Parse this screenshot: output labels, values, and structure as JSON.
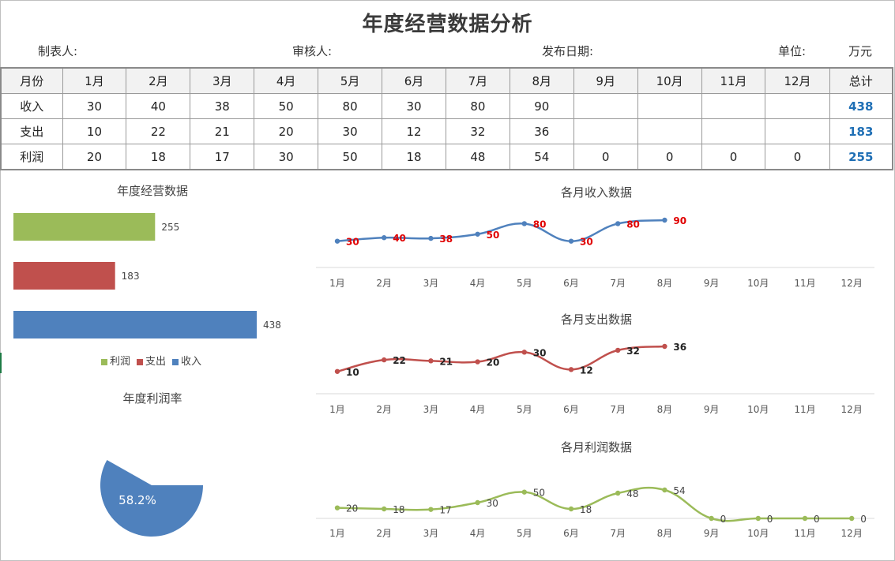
{
  "header": {
    "title": "年度经营数据分析",
    "maker_label": "制表人:",
    "reviewer_label": "审核人:",
    "date_label": "发布日期:",
    "unit_label": "单位:",
    "unit_value": "万元"
  },
  "table": {
    "columns": [
      "月份",
      "1月",
      "2月",
      "3月",
      "4月",
      "5月",
      "6月",
      "7月",
      "8月",
      "9月",
      "10月",
      "11月",
      "12月",
      "总计"
    ],
    "rows": [
      {
        "label": "收入",
        "values": [
          "30",
          "40",
          "38",
          "50",
          "80",
          "30",
          "80",
          "90",
          "",
          "",
          "",
          "",
          ""
        ],
        "total": "438"
      },
      {
        "label": "支出",
        "values": [
          "10",
          "22",
          "21",
          "20",
          "30",
          "12",
          "32",
          "36",
          "",
          "",
          "",
          "",
          ""
        ],
        "total": "183"
      },
      {
        "label": "利润",
        "values": [
          "20",
          "18",
          "17",
          "30",
          "50",
          "18",
          "48",
          "54",
          "0",
          "0",
          "0",
          "0"
        ],
        "total": "255"
      }
    ]
  },
  "colors": {
    "income": "#4f81bd",
    "expense": "#c0504d",
    "profit": "#9bbb59",
    "label_red": "#e00000"
  },
  "chart_data": [
    {
      "type": "bar",
      "title": "年度经营数据",
      "orientation": "horizontal",
      "categories": [
        "利润",
        "支出",
        "收入"
      ],
      "values": [
        255,
        183,
        438
      ],
      "legend": [
        "利润",
        "支出",
        "收入"
      ],
      "legend_position": "bottom"
    },
    {
      "type": "pie",
      "title": "年度利润率",
      "values": [
        58.2
      ],
      "labels": [
        "58.2%"
      ]
    },
    {
      "type": "line",
      "title": "各月收入数据",
      "categories": [
        "1月",
        "2月",
        "3月",
        "4月",
        "5月",
        "6月",
        "7月",
        "8月",
        "9月",
        "10月",
        "11月",
        "12月"
      ],
      "values": [
        30,
        40,
        38,
        50,
        80,
        30,
        80,
        90,
        null,
        null,
        null,
        null
      ],
      "smooth": true
    },
    {
      "type": "line",
      "title": "各月支出数据",
      "categories": [
        "1月",
        "2月",
        "3月",
        "4月",
        "5月",
        "6月",
        "7月",
        "8月",
        "9月",
        "10月",
        "11月",
        "12月"
      ],
      "values": [
        10,
        22,
        21,
        20,
        30,
        12,
        32,
        36,
        null,
        null,
        null,
        null
      ],
      "smooth": true
    },
    {
      "type": "line",
      "title": "各月利润数据",
      "categories": [
        "1月",
        "2月",
        "3月",
        "4月",
        "5月",
        "6月",
        "7月",
        "8月",
        "9月",
        "10月",
        "11月",
        "12月"
      ],
      "values": [
        20,
        18,
        17,
        30,
        50,
        18,
        48,
        54,
        0,
        0,
        0,
        0
      ],
      "smooth": true
    }
  ]
}
